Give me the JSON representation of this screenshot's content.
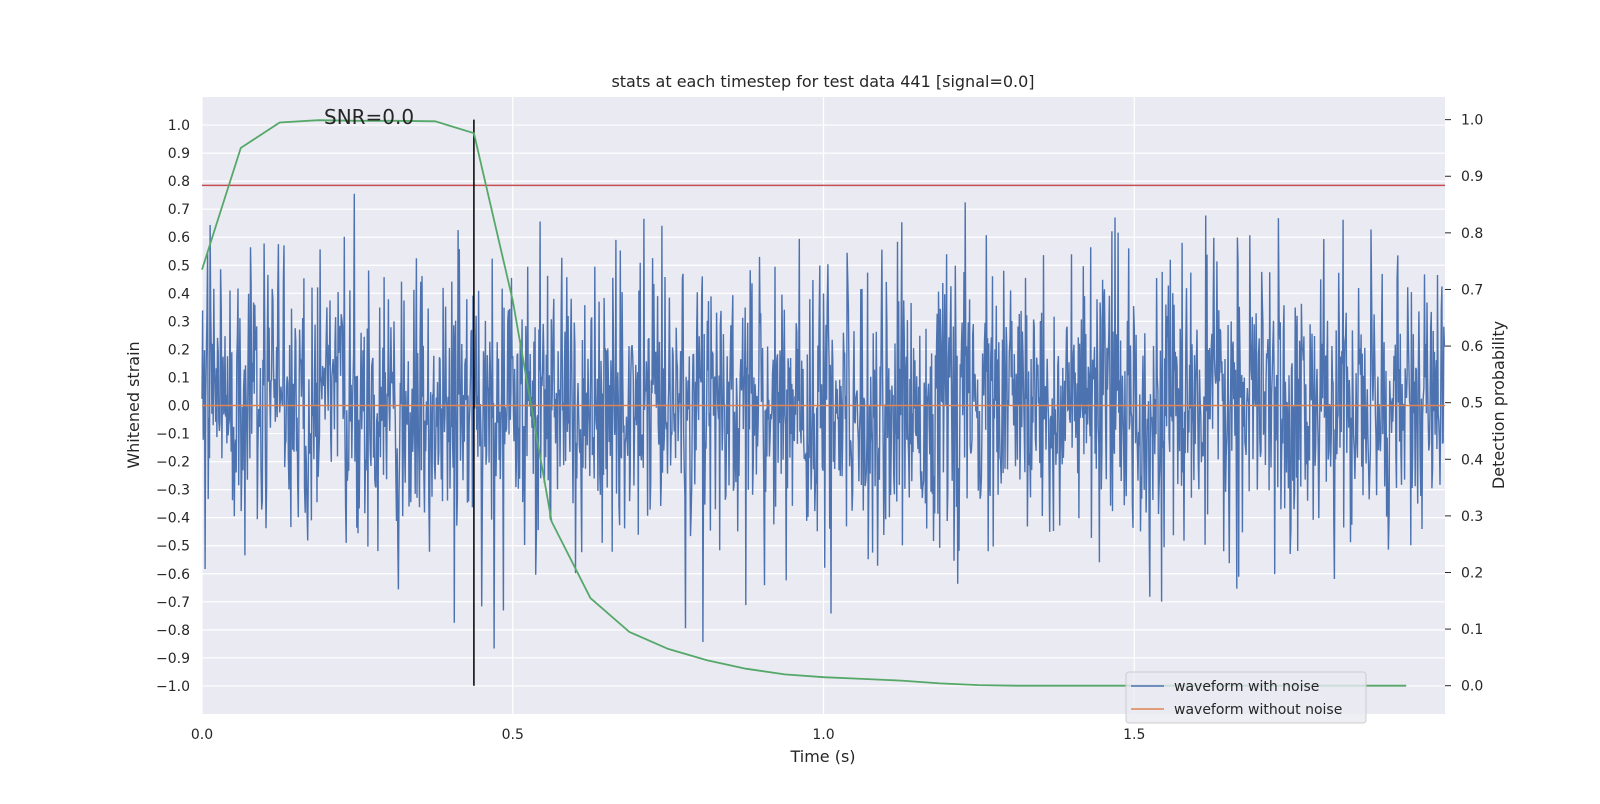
{
  "chart_data": {
    "type": "line",
    "title": "stats at each timestep for test data 441 [signal=0.0]",
    "xlabel": "Time (s)",
    "ylabel_left": "Whitened strain",
    "ylabel_right": "Detection probability",
    "annotation": "SNR=0.0",
    "xlim": [
      0.0,
      2.0
    ],
    "ylim_left": [
      -1.1,
      1.1
    ],
    "ylim_right": [
      -0.05,
      1.04
    ],
    "x_ticks": [
      "0.0",
      "0.5",
      "1.0",
      "1.5"
    ],
    "x_tick_values": [
      0.0,
      0.5,
      1.0,
      1.5
    ],
    "y_left_ticks": [
      "1.0",
      "0.9",
      "0.8",
      "0.7",
      "0.6",
      "0.5",
      "0.4",
      "0.3",
      "0.2",
      "0.1",
      "0.0",
      "−0.1",
      "−0.2",
      "−0.3",
      "−0.4",
      "−0.5",
      "−0.6",
      "−0.7",
      "−0.8",
      "−0.9",
      "−1.0"
    ],
    "y_left_tick_values": [
      1.0,
      0.9,
      0.8,
      0.7,
      0.6,
      0.5,
      0.4,
      0.3,
      0.2,
      0.1,
      0.0,
      -0.1,
      -0.2,
      -0.3,
      -0.4,
      -0.5,
      -0.6,
      -0.7,
      -0.8,
      -0.9,
      -1.0
    ],
    "y_right_ticks": [
      "1.0",
      "0.9",
      "0.8",
      "0.7",
      "0.6",
      "0.5",
      "0.4",
      "0.3",
      "0.2",
      "0.1",
      "0.0"
    ],
    "y_right_tick_values": [
      1.0,
      0.9,
      0.8,
      0.7,
      0.6,
      0.5,
      0.4,
      0.3,
      0.2,
      0.1,
      0.0
    ],
    "grid": true,
    "legend_position": "bottom-right",
    "series": [
      {
        "name": "waveform with noise",
        "axis": "left",
        "color": "#4c72b0",
        "note": "dense noise trace, ~2000 samples, values mostly within [-0.5, 0.5], peaks near [-1.0, 0.98]",
        "sample_count": 2000,
        "y_range": [
          -1.0,
          0.98
        ]
      },
      {
        "name": "waveform without noise",
        "axis": "left",
        "color": "#dd8452",
        "x": [
          0.0,
          2.0
        ],
        "y": [
          0.0,
          0.0
        ]
      },
      {
        "name": "Detection probability",
        "axis": "right",
        "color": "#55a868",
        "x": [
          0.0,
          0.0625,
          0.125,
          0.1875,
          0.25,
          0.3125,
          0.375,
          0.4375,
          0.5,
          0.5625,
          0.625,
          0.6875,
          0.75,
          0.8125,
          0.875,
          0.9375,
          1.0,
          1.0625,
          1.125,
          1.1875,
          1.25,
          1.3125,
          1.375,
          1.4375,
          1.5,
          1.5625,
          1.625,
          1.6875,
          1.75,
          1.8125,
          1.875,
          1.9375
        ],
        "y": [
          0.735,
          0.95,
          0.995,
          0.999,
          0.998,
          0.998,
          0.997,
          0.976,
          0.68,
          0.29,
          0.155,
          0.095,
          0.065,
          0.045,
          0.03,
          0.02,
          0.015,
          0.012,
          0.009,
          0.004,
          0.001,
          0.0,
          0.0,
          0.0,
          0.0,
          0.0,
          0.0,
          0.0,
          0.0,
          0.0,
          0.0,
          0.0
        ]
      }
    ],
    "threshold": {
      "axis": "left",
      "value": 0.785,
      "color": "#c44e52"
    },
    "vline": {
      "x": 0.4375,
      "y_right_range": [
        0.0,
        1.0
      ],
      "color": "#000000"
    },
    "legend": [
      "waveform with noise",
      "waveform without noise"
    ]
  }
}
